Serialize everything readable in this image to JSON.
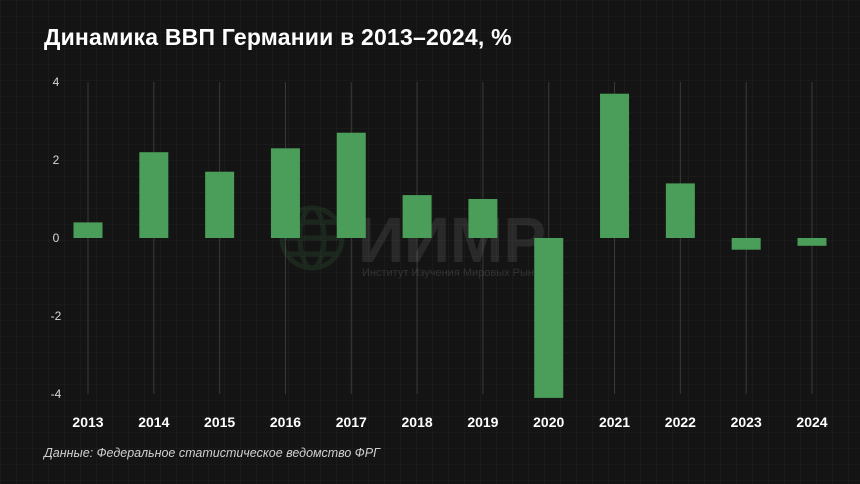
{
  "chart_data": {
    "type": "bar",
    "title": "Динамика ВВП Германии в 2013–2024, %",
    "categories": [
      "2013",
      "2014",
      "2015",
      "2016",
      "2017",
      "2018",
      "2019",
      "2020",
      "2021",
      "2022",
      "2023",
      "2024"
    ],
    "values": [
      0.4,
      2.2,
      1.7,
      2.3,
      2.7,
      1.1,
      1.0,
      -4.1,
      3.7,
      1.4,
      -0.3,
      -0.2
    ],
    "ylim": [
      -4,
      4
    ],
    "yticks": [
      -4,
      -2,
      0,
      2,
      4
    ],
    "ytick_labels": [
      "-4",
      "-2",
      "0",
      "2",
      "4"
    ],
    "xlabel": "",
    "ylabel": "",
    "grid": "vertical",
    "legend": "none",
    "bar_color": "#4a9e59",
    "background": "#141414"
  },
  "source": "Данные: Федеральное статистическое ведомство ФРГ",
  "watermark": {
    "name": "ИИМР",
    "subtitle": "Институт Изучения Мировых Рынков",
    "icon": "globe-icon"
  }
}
